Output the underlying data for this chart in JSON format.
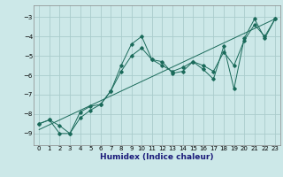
{
  "title": "",
  "xlabel": "Humidex (Indice chaleur)",
  "background_color": "#cce8e8",
  "grid_color": "#aacccc",
  "line_color": "#1a6a5a",
  "xlim": [
    -0.5,
    23.5
  ],
  "ylim": [
    -9.6,
    -2.4
  ],
  "yticks": [
    -9,
    -8,
    -7,
    -6,
    -5,
    -4,
    -3
  ],
  "xticks": [
    0,
    1,
    2,
    3,
    4,
    5,
    6,
    7,
    8,
    9,
    10,
    11,
    12,
    13,
    14,
    15,
    16,
    17,
    18,
    19,
    20,
    21,
    22,
    23
  ],
  "line1_x": [
    0,
    1,
    2,
    3,
    4,
    5,
    6,
    7,
    8,
    9,
    10,
    11,
    12,
    13,
    14,
    15,
    16,
    17,
    18,
    19,
    20,
    21,
    22,
    23
  ],
  "line1_y": [
    -8.5,
    -8.3,
    -9.0,
    -9.0,
    -7.9,
    -7.6,
    -7.5,
    -6.8,
    -5.5,
    -4.4,
    -4.0,
    -5.2,
    -5.3,
    -5.9,
    -5.8,
    -5.3,
    -5.7,
    -6.2,
    -4.5,
    -6.7,
    -4.1,
    -3.1,
    -4.1,
    -3.1
  ],
  "line2_x": [
    0,
    1,
    2,
    3,
    4,
    5,
    6,
    7,
    8,
    9,
    10,
    11,
    12,
    13,
    14,
    15,
    16,
    17,
    18,
    19,
    20,
    21,
    22,
    23
  ],
  "line2_y": [
    -8.5,
    -8.3,
    -8.6,
    -9.0,
    -8.2,
    -7.8,
    -7.5,
    -6.8,
    -5.8,
    -5.0,
    -4.6,
    -5.2,
    -5.5,
    -5.8,
    -5.6,
    -5.3,
    -5.5,
    -5.8,
    -4.8,
    -5.5,
    -4.2,
    -3.4,
    -4.0,
    -3.1
  ],
  "trend_x": [
    0,
    23
  ],
  "trend_y": [
    -8.8,
    -3.1
  ]
}
